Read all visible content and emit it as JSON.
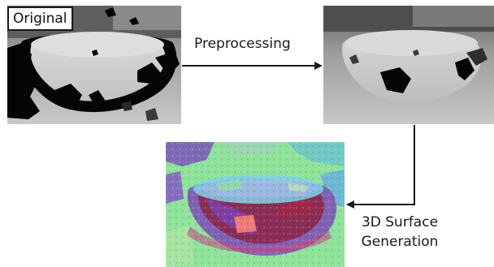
{
  "panels": {
    "original": {
      "label": "Original"
    },
    "preprocessed": {},
    "surface": {}
  },
  "steps": {
    "preprocessing": "Preprocessing",
    "surface_line1": "3D Surface",
    "surface_line2": "Generation"
  },
  "colors": {
    "arrow": "#1a1a1a",
    "depth_background": "#a8a8a8",
    "depth_hole": "#000000",
    "bowl_rim": "#d7d7d7",
    "surface_green": "#8fe29a",
    "surface_purple": "#7f62b4",
    "surface_red": "#8f1f3c",
    "surface_pink": "#ee7a78",
    "surface_cyan": "#7fd1e8"
  }
}
